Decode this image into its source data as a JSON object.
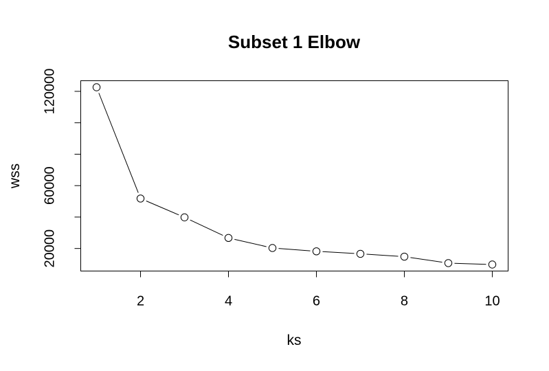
{
  "chart_data": {
    "type": "line",
    "title": "Subset 1 Elbow",
    "xlabel": "ks",
    "ylabel": "wss",
    "x": [
      1,
      2,
      3,
      4,
      5,
      6,
      7,
      8,
      9,
      10
    ],
    "series": [
      {
        "name": "wss",
        "values": [
          122600,
          51800,
          39800,
          26700,
          20300,
          18200,
          16600,
          14800,
          10700,
          9800
        ]
      }
    ],
    "xticks": [
      2,
      4,
      6,
      8,
      10
    ],
    "xtick_labels": [
      "2",
      "4",
      "6",
      "8",
      "10"
    ],
    "yticks": [
      20000,
      40000,
      60000,
      80000,
      100000,
      120000
    ],
    "ytick_labels": [
      "20000",
      "",
      "60000",
      "",
      "",
      "120000"
    ],
    "xlim": [
      0.64,
      10.36
    ],
    "ylim": [
      5644,
      126756
    ],
    "marker": "open-circle",
    "line_style": "overplotted",
    "grid": false,
    "legend": "none"
  }
}
